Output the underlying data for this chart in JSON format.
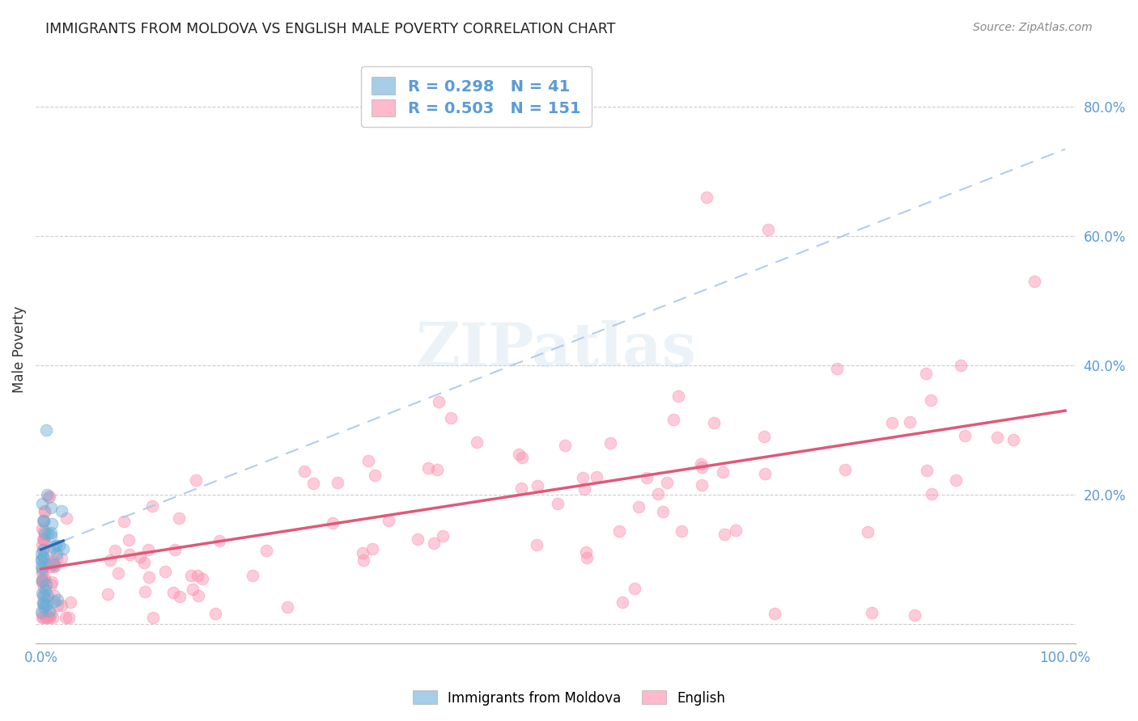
{
  "title": "IMMIGRANTS FROM MOLDOVA VS ENGLISH MALE POVERTY CORRELATION CHART",
  "source": "Source: ZipAtlas.com",
  "ylabel": "Male Poverty",
  "yticks": [
    0.0,
    0.2,
    0.4,
    0.6,
    0.8
  ],
  "ytick_labels": [
    "",
    "20.0%",
    "40.0%",
    "60.0%",
    "80.0%"
  ],
  "legend_blue_r": "0.298",
  "legend_blue_n": "41",
  "legend_pink_r": "0.503",
  "legend_pink_n": "151",
  "legend_label_blue": "Immigrants from Moldova",
  "legend_label_pink": "English",
  "blue_color": "#6baed6",
  "pink_color": "#fc8dac",
  "blue_trendline_color": "#2b6cb8",
  "blue_dashed_color": "#aac8e8",
  "pink_trendline_color": "#e05878",
  "background_color": "#ffffff",
  "watermark": "ZIPatlas",
  "xlim": [
    -0.005,
    1.01
  ],
  "ylim": [
    -0.03,
    0.88
  ],
  "blue_trendline_intercept": 0.115,
  "blue_trendline_slope": 0.62,
  "pink_trendline_intercept": 0.085,
  "pink_trendline_slope": 0.245
}
